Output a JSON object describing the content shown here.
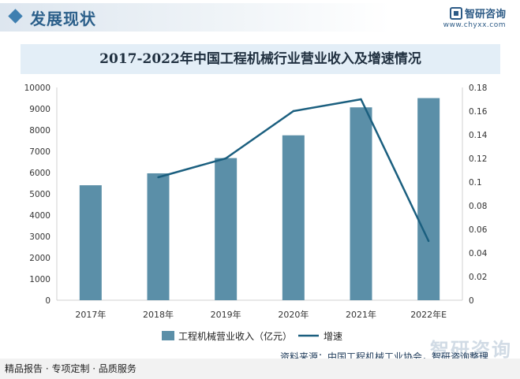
{
  "header": {
    "section_title": "发展现状",
    "brand_name": "智研咨询",
    "brand_url": "www.chyxx.com",
    "brand_color": "#2d5b86"
  },
  "chart_data": {
    "type": "bar+line",
    "title": "2017-2022年中国工程机械行业营业收入及增速情况",
    "categories": [
      "2017年",
      "2018年",
      "2019年",
      "2020年",
      "2021年",
      "2022年E"
    ],
    "series": [
      {
        "name": "工程机械营业收入（亿元）",
        "type": "bar",
        "axis": "left",
        "color": "#5b8fa8",
        "values": [
          5403,
          5964,
          6681,
          7751,
          9065,
          9500
        ]
      },
      {
        "name": "增速",
        "type": "line",
        "axis": "right",
        "color": "#1b5f7f",
        "values": [
          null,
          0.104,
          0.12,
          0.16,
          0.17,
          0.05
        ]
      }
    ],
    "y_left": {
      "min": 0,
      "max": 10000,
      "ticks": [
        "0",
        "1000",
        "2000",
        "3000",
        "4000",
        "5000",
        "6000",
        "7000",
        "8000",
        "9000",
        "10000"
      ]
    },
    "y_right": {
      "min": 0,
      "max": 0.18,
      "ticks": [
        "0",
        "0.02",
        "0.04",
        "0.06",
        "0.08",
        "0.1",
        "0.12",
        "0.14",
        "0.16",
        "0.18"
      ]
    },
    "grid": false,
    "legend_position": "bottom"
  },
  "footer": {
    "source": "资料来源：中国工程机械工业协会，智研咨询整理",
    "services": "精品报告 · 专项定制 · 品质服务",
    "watermark": "智研咨询"
  }
}
